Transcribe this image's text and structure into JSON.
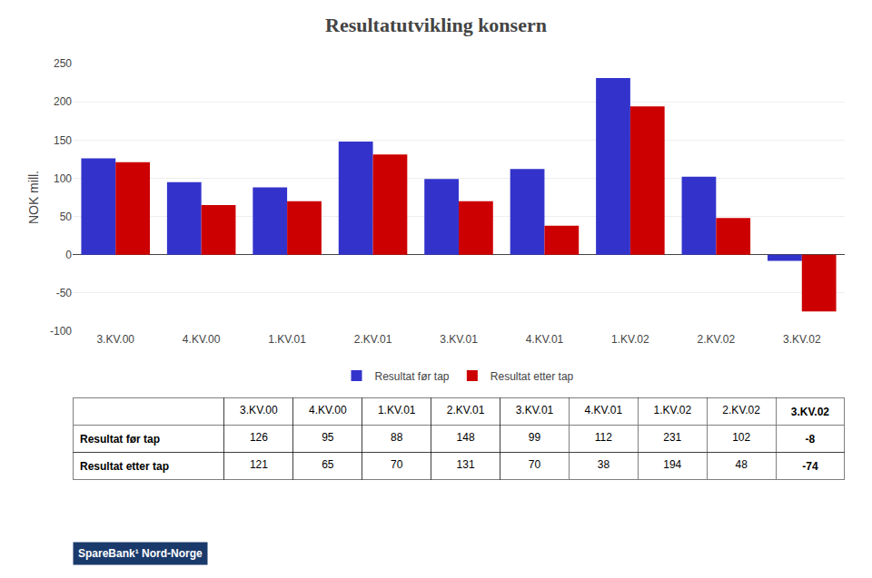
{
  "chart_data": {
    "type": "bar",
    "title": "Resultatutvikling konsern",
    "categories": [
      "3.KV.00",
      "4.KV.00",
      "1.KV.01",
      "2.KV.01",
      "3.KV.01",
      "4.KV.01",
      "1.KV.02",
      "2.KV.02",
      "3.KV.02"
    ],
    "series": [
      {
        "name": "Resultat før tap",
        "color": "#3333cc",
        "values": [
          126,
          95,
          88,
          148,
          99,
          112,
          231,
          102,
          -8
        ]
      },
      {
        "name": "Resultat etter tap",
        "color": "#cc0000",
        "values": [
          121,
          65,
          70,
          131,
          70,
          38,
          194,
          48,
          -74
        ]
      }
    ],
    "ylabel": "NOK mill.",
    "ylim": [
      -100,
      250
    ],
    "yticks": [
      -100,
      -50,
      0,
      50,
      100,
      150,
      200,
      250
    ],
    "grid": true,
    "legend": "bottom",
    "annotations": [
      "SpareBank¹ Nord-Norge"
    ]
  }
}
